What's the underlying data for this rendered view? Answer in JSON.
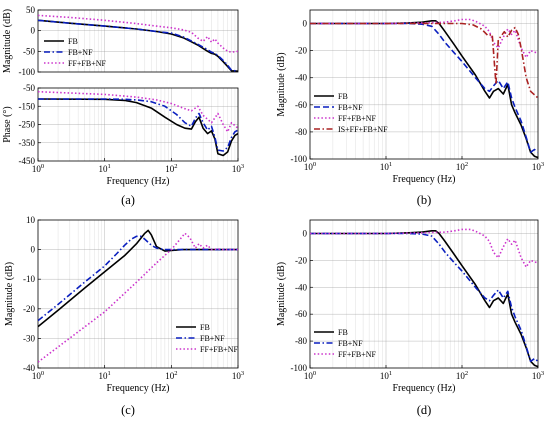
{
  "chart_data": [
    {
      "type": "line",
      "panel_label": "(a)",
      "subplots": [
        {
          "role": "magnitude",
          "xlabel": "",
          "ylabel": "Magnitude (dB)",
          "xscale": "log",
          "xlim": [
            1,
            1000
          ],
          "ylim": [
            -100,
            50
          ],
          "xticks": [],
          "xtick_labels": [],
          "yticks": [
            -100,
            -50,
            0,
            50
          ],
          "ytick_labels": [
            "-100",
            "-50",
            "0",
            "50"
          ],
          "grid": true,
          "legend_position": "bottom-left",
          "series": [
            {
              "name": "FB",
              "color": "#000000",
              "dash": "solid",
              "x": [
                1,
                3,
                10,
                30,
                60,
                100,
                150,
                200,
                250,
                300,
                350,
                400,
                450,
                500,
                600,
                700,
                800,
                1000
              ],
              "y": [
                25,
                18,
                11,
                4,
                -2,
                -8,
                -17,
                -27,
                -35,
                -43,
                -50,
                -55,
                -57,
                -62,
                -75,
                -87,
                -97,
                -98
              ]
            },
            {
              "name": "FB+NF",
              "color": "#0a1fbf",
              "dash": "dashdot",
              "x": [
                1,
                3,
                10,
                30,
                60,
                100,
                150,
                200,
                250,
                300,
                350,
                400,
                450,
                500,
                600,
                700,
                800,
                1000
              ],
              "y": [
                25,
                18,
                11,
                4,
                -2,
                -6,
                -15,
                -25,
                -33,
                -40,
                -46,
                -52,
                -55,
                -60,
                -72,
                -84,
                -96,
                -98
              ]
            },
            {
              "name": "FF+FB+NF",
              "color": "#cc33cc",
              "dash": "dotted",
              "x": [
                1,
                3,
                10,
                30,
                60,
                100,
                150,
                200,
                250,
                300,
                350,
                400,
                450,
                500,
                600,
                700,
                800,
                1000
              ],
              "y": [
                37,
                32,
                25,
                17,
                11,
                7,
                2,
                -4,
                -18,
                -26,
                -14,
                -28,
                -20,
                -30,
                -42,
                -50,
                -52,
                -50
              ]
            }
          ]
        },
        {
          "role": "phase",
          "xlabel": "Frequency (Hz)",
          "ylabel": "Phase (°)",
          "xscale": "log",
          "xlim": [
            1,
            1000
          ],
          "ylim": [
            -450,
            -50
          ],
          "xticks": [
            1,
            10,
            100,
            1000
          ],
          "xtick_labels": [
            "10⁰",
            "10¹",
            "10²",
            "10³"
          ],
          "yticks": [
            -450,
            -350,
            -250,
            -150,
            -50
          ],
          "ytick_labels": [
            "-450",
            "-350",
            "-250",
            "-150",
            "-50"
          ],
          "grid": true,
          "series": [
            {
              "name": "FB",
              "color": "#000000",
              "dash": "solid",
              "x": [
                1,
                10,
                20,
                30,
                50,
                80,
                120,
                160,
                200,
                230,
                260,
                300,
                350,
                400,
                450,
                500,
                600,
                700,
                800,
                900,
                1000
              ],
              "y": [
                -110,
                -112,
                -118,
                -130,
                -160,
                -210,
                -250,
                -270,
                -275,
                -235,
                -210,
                -270,
                -300,
                -285,
                -330,
                -410,
                -420,
                -400,
                -340,
                -310,
                -300
              ]
            },
            {
              "name": "FB+NF",
              "color": "#0a1fbf",
              "dash": "dashdot",
              "x": [
                1,
                10,
                20,
                30,
                50,
                80,
                120,
                160,
                200,
                230,
                260,
                300,
                350,
                400,
                450,
                500,
                600,
                700,
                800,
                900,
                1000
              ],
              "y": [
                -110,
                -110,
                -112,
                -115,
                -125,
                -150,
                -195,
                -240,
                -260,
                -215,
                -190,
                -240,
                -280,
                -260,
                -320,
                -390,
                -395,
                -375,
                -320,
                -290,
                -280
              ]
            },
            {
              "name": "FF+FB+NF",
              "color": "#cc33cc",
              "dash": "dotted",
              "x": [
                1,
                10,
                30,
                60,
                100,
                150,
                200,
                250,
                300,
                400,
                500,
                600,
                700,
                800,
                1000
              ],
              "y": [
                -70,
                -85,
                -100,
                -115,
                -135,
                -160,
                -175,
                -150,
                -200,
                -240,
                -190,
                -250,
                -290,
                -240,
                -270
              ]
            }
          ]
        }
      ]
    },
    {
      "type": "line",
      "panel_label": "(b)",
      "xlabel": "Frequency (Hz)",
      "ylabel": "Magnitude (dB)",
      "xscale": "log",
      "xlim": [
        1,
        1000
      ],
      "ylim": [
        -100,
        10
      ],
      "xticks": [
        1,
        10,
        100,
        1000
      ],
      "xtick_labels": [
        "10⁰",
        "10¹",
        "10²",
        "10³"
      ],
      "yticks": [
        -100,
        -80,
        -60,
        -40,
        -20,
        0
      ],
      "ytick_labels": [
        "-100",
        "-80",
        "-60",
        "-40",
        "-20",
        "0"
      ],
      "grid": true,
      "legend_position": "bottom-left",
      "series": [
        {
          "name": "FB",
          "color": "#000000",
          "dash": "solid",
          "x": [
            1,
            10,
            20,
            30,
            40,
            45,
            50,
            60,
            80,
            100,
            150,
            200,
            230,
            260,
            300,
            350,
            400,
            450,
            500,
            600,
            700,
            800,
            900,
            1000
          ],
          "y": [
            0,
            0,
            0.5,
            1,
            2,
            2,
            0,
            -6,
            -16,
            -24,
            -38,
            -50,
            -55,
            -50,
            -48,
            -52,
            -45,
            -60,
            -66,
            -75,
            -85,
            -95,
            -98,
            -99
          ]
        },
        {
          "name": "FB+NF",
          "color": "#0a1fbf",
          "dash": "dashed",
          "x": [
            1,
            10,
            20,
            30,
            40,
            50,
            60,
            80,
            100,
            150,
            200,
            230,
            260,
            300,
            350,
            400,
            450,
            500,
            600,
            700,
            800,
            900,
            1000
          ],
          "y": [
            0,
            0,
            0,
            -0.5,
            -2,
            -8,
            -14,
            -22,
            -28,
            -40,
            -48,
            -50,
            -46,
            -42,
            -48,
            -43,
            -55,
            -62,
            -72,
            -84,
            -95,
            -93,
            -95
          ]
        },
        {
          "name": "FF+FB+NF",
          "color": "#cc33cc",
          "dash": "dotted",
          "x": [
            1,
            10,
            30,
            60,
            80,
            100,
            130,
            160,
            200,
            230,
            260,
            300,
            350,
            400,
            450,
            500,
            600,
            700,
            800,
            1000
          ],
          "y": [
            0,
            0,
            0.5,
            1,
            2,
            3,
            3,
            1,
            -2,
            -6,
            -14,
            -18,
            -10,
            -4,
            -8,
            -5,
            -18,
            -25,
            -20,
            -22
          ]
        },
        {
          "name": "IS+FF+FB+NF",
          "color": "#aa2222",
          "dash": "dashdot",
          "x": [
            1,
            10,
            30,
            60,
            100,
            140,
            180,
            220,
            250,
            280,
            300,
            330,
            360,
            400,
            450,
            500,
            550,
            600,
            700,
            800,
            1000
          ],
          "y": [
            0,
            0,
            0,
            0,
            0,
            -1,
            -4,
            -9,
            -8,
            -45,
            -12,
            -9,
            -6,
            -10,
            -5,
            -3,
            -8,
            -18,
            -40,
            -50,
            -55
          ]
        }
      ]
    },
    {
      "type": "line",
      "panel_label": "(c)",
      "xlabel": "Frequency (Hz)",
      "ylabel": "Magnitude (dB)",
      "xscale": "log",
      "xlim": [
        1,
        1000
      ],
      "ylim": [
        -40,
        10
      ],
      "xticks": [
        1,
        10,
        100,
        1000
      ],
      "xtick_labels": [
        "10⁰",
        "10¹",
        "10²",
        "10³"
      ],
      "yticks": [
        -40,
        -30,
        -20,
        -10,
        0,
        10
      ],
      "ytick_labels": [
        "-40",
        "-30",
        "-20",
        "-10",
        "0",
        "10"
      ],
      "grid": true,
      "legend_position": "bottom-right",
      "series": [
        {
          "name": "FB",
          "color": "#000000",
          "dash": "solid",
          "x": [
            1,
            2,
            5,
            10,
            20,
            30,
            40,
            45,
            50,
            60,
            80,
            100,
            150,
            200,
            300,
            1000
          ],
          "y": [
            -26,
            -20.5,
            -13,
            -7.5,
            -2,
            2,
            5.5,
            6.5,
            5,
            1,
            -0.5,
            -0.3,
            0,
            0,
            0,
            0
          ]
        },
        {
          "name": "FB+NF",
          "color": "#0a1fbf",
          "dash": "dashdot",
          "x": [
            1,
            2,
            5,
            10,
            15,
            20,
            25,
            30,
            35,
            40,
            50,
            60,
            80,
            100,
            150,
            300,
            1000
          ],
          "y": [
            -24,
            -18.5,
            -11,
            -5.5,
            -1.5,
            1.5,
            3.5,
            4.5,
            4.5,
            3.5,
            1.5,
            0.5,
            0,
            0,
            0,
            0,
            0
          ]
        },
        {
          "name": "FF+FB+NF",
          "color": "#cc33cc",
          "dash": "dotted",
          "x": [
            1,
            10,
            30,
            60,
            100,
            130,
            160,
            190,
            230,
            260,
            300,
            350,
            400,
            500,
            600,
            1000
          ],
          "y": [
            -38,
            -21,
            -11,
            -4.5,
            0,
            3,
            5.5,
            4,
            0.5,
            2,
            0.5,
            1.5,
            0,
            0.2,
            0,
            0
          ]
        }
      ]
    },
    {
      "type": "line",
      "panel_label": "(d)",
      "xlabel": "Frequency (Hz)",
      "ylabel": "Magnitude (dB)",
      "xscale": "log",
      "xlim": [
        1,
        1000
      ],
      "ylim": [
        -100,
        10
      ],
      "xticks": [
        1,
        10,
        100,
        1000
      ],
      "xtick_labels": [
        "10⁰",
        "10¹",
        "10²",
        "10³"
      ],
      "yticks": [
        -100,
        -80,
        -60,
        -40,
        -20,
        0
      ],
      "ytick_labels": [
        "-100",
        "-80",
        "-60",
        "-40",
        "-20",
        "0"
      ],
      "grid": true,
      "legend_position": "bottom-left",
      "series": [
        {
          "name": "FB",
          "color": "#000000",
          "dash": "solid",
          "x": [
            1,
            10,
            20,
            30,
            40,
            45,
            50,
            60,
            80,
            100,
            150,
            200,
            230,
            260,
            300,
            350,
            400,
            450,
            500,
            600,
            700,
            800,
            900,
            1000
          ],
          "y": [
            0,
            0,
            0.5,
            1,
            2,
            2,
            0,
            -6,
            -16,
            -24,
            -38,
            -50,
            -55,
            -50,
            -48,
            -52,
            -45,
            -60,
            -66,
            -75,
            -85,
            -95,
            -98,
            -99
          ]
        },
        {
          "name": "FB+NF",
          "color": "#0a1fbf",
          "dash": "dashdot",
          "x": [
            1,
            10,
            20,
            30,
            40,
            50,
            60,
            80,
            100,
            150,
            200,
            230,
            260,
            300,
            350,
            400,
            450,
            500,
            600,
            700,
            800,
            900,
            1000
          ],
          "y": [
            0,
            0,
            0,
            -0.5,
            -2,
            -8,
            -14,
            -22,
            -28,
            -40,
            -48,
            -50,
            -46,
            -42,
            -48,
            -43,
            -55,
            -62,
            -72,
            -84,
            -95,
            -93,
            -95
          ]
        },
        {
          "name": "FF+FB+NF",
          "color": "#cc33cc",
          "dash": "dotted",
          "x": [
            1,
            10,
            30,
            60,
            80,
            100,
            130,
            160,
            200,
            230,
            260,
            300,
            350,
            400,
            450,
            500,
            600,
            700,
            800,
            1000
          ],
          "y": [
            0,
            0,
            0.5,
            1,
            2,
            3,
            3,
            1,
            -2,
            -6,
            -14,
            -18,
            -10,
            -4,
            -8,
            -5,
            -18,
            -25,
            -20,
            -22
          ]
        }
      ]
    }
  ]
}
